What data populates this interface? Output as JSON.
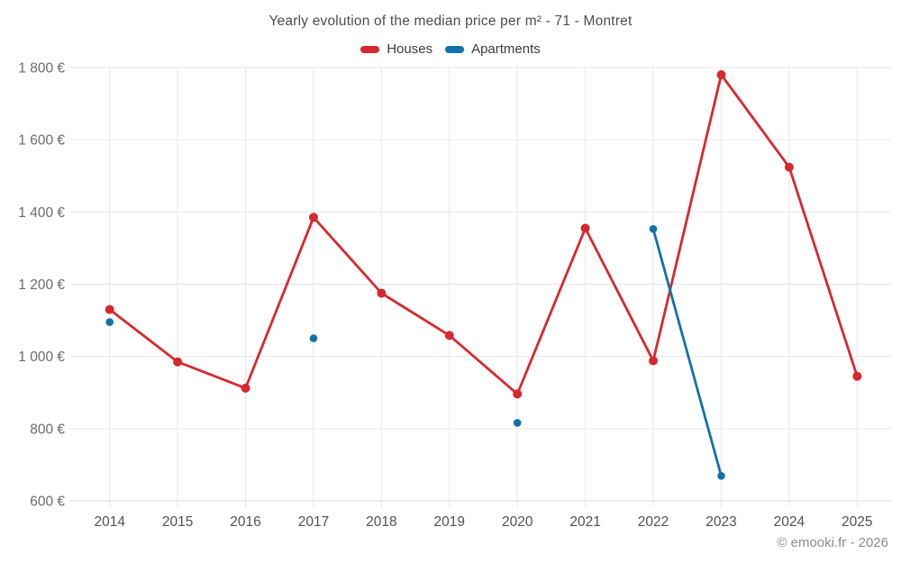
{
  "chart_data": {
    "type": "line",
    "title": "Yearly evolution of the median price per m² - 71 - Montret",
    "categories": [
      "2014",
      "2015",
      "2016",
      "2017",
      "2018",
      "2019",
      "2020",
      "2021",
      "2022",
      "2023",
      "2024",
      "2025"
    ],
    "series": [
      {
        "name": "Houses",
        "color": "#d7282f",
        "values": [
          1130,
          985,
          912,
          1385,
          1175,
          1058,
          896,
          1355,
          988,
          1780,
          1524,
          945
        ]
      },
      {
        "name": "Apartments",
        "color": "#1272a8",
        "values": [
          1095,
          null,
          null,
          1050,
          null,
          null,
          816,
          null,
          1353,
          669,
          null,
          null
        ]
      }
    ],
    "ylim": [
      600,
      1800
    ],
    "y_ticks": [
      {
        "value": 600,
        "label": "600 €"
      },
      {
        "value": 800,
        "label": "800 €"
      },
      {
        "value": 1000,
        "label": "1 000 €"
      },
      {
        "value": 1200,
        "label": "1 200 €"
      },
      {
        "value": 1400,
        "label": "1 400 €"
      },
      {
        "value": 1600,
        "label": "1 600 €"
      },
      {
        "value": 1800,
        "label": "1 800 €"
      }
    ],
    "grid": true,
    "legend_position": "top",
    "unit": "€"
  },
  "footer": {
    "text": "© emooki.fr - 2026"
  }
}
